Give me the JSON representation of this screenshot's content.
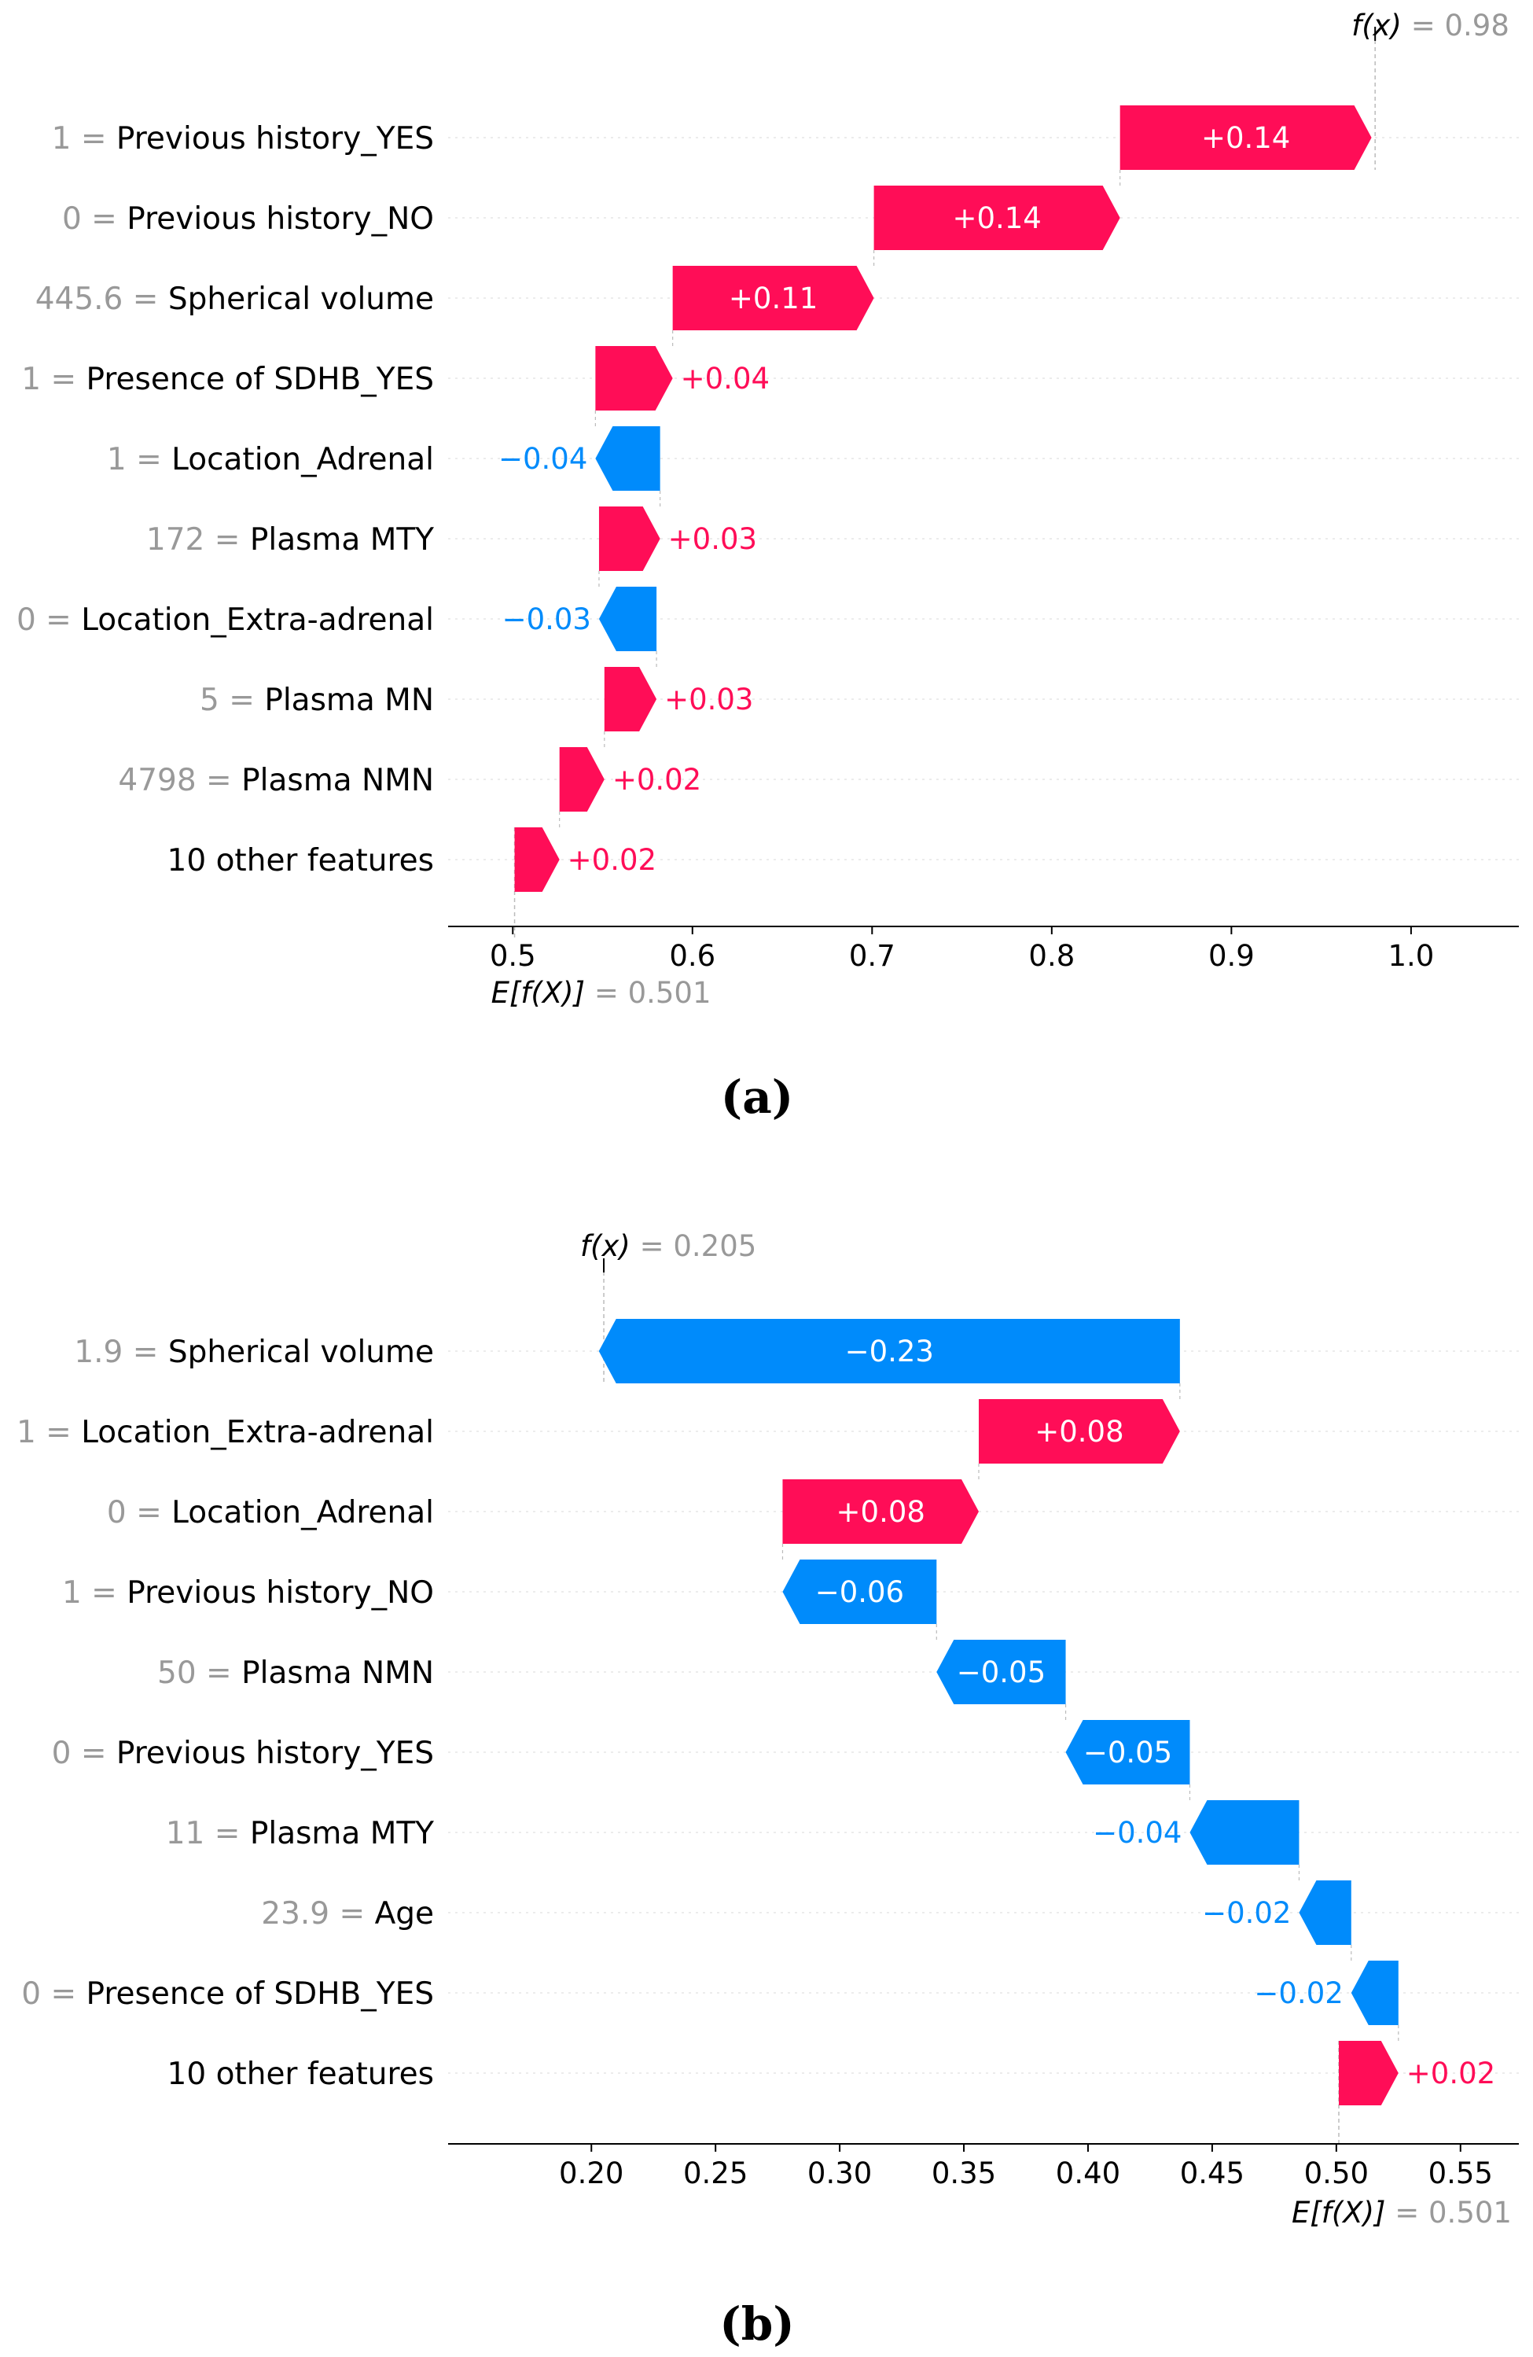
{
  "colors": {
    "positive": "#ff0d57",
    "negative": "#008bfb",
    "muted": "#999999",
    "grid": "#cccccc"
  },
  "chart_data": [
    {
      "type": "waterfall",
      "caption": "(a)",
      "xticks": [
        "0.5",
        "0.6",
        "0.7",
        "0.8",
        "0.9",
        "1.0"
      ],
      "xtick_values": [
        0.5,
        0.6,
        0.7,
        0.8,
        0.9,
        1.0
      ],
      "xlim": [
        0.464,
        1.06
      ],
      "base": {
        "value": 0.501,
        "label": "E[f(X)]",
        "text": "= 0.501"
      },
      "output": {
        "value": 0.98,
        "label": "f(x)",
        "text": "= 0.98"
      },
      "features": [
        {
          "value": "1",
          "name": "Previous history_YES",
          "shap": 0.14,
          "label": "+0.14"
        },
        {
          "value": "0",
          "name": "Previous history_NO",
          "shap": 0.137,
          "label": "+0.14"
        },
        {
          "value": "445.6",
          "name": "Spherical volume",
          "shap": 0.112,
          "label": "+0.11"
        },
        {
          "value": "1",
          "name": "Presence of SDHB_YES",
          "shap": 0.043,
          "label": "+0.04"
        },
        {
          "value": "1",
          "name": "Location_Adrenal",
          "shap": -0.036,
          "label": "−0.04"
        },
        {
          "value": "172",
          "name": "Plasma MTY",
          "shap": 0.034,
          "label": "+0.03"
        },
        {
          "value": "0",
          "name": "Location_Extra-adrenal",
          "shap": -0.032,
          "label": "−0.03"
        },
        {
          "value": "5",
          "name": "Plasma MN",
          "shap": 0.029,
          "label": "+0.03"
        },
        {
          "value": "4798",
          "name": "Plasma NMN",
          "shap": 0.025,
          "label": "+0.02"
        },
        {
          "value": "",
          "name": "10 other features",
          "shap": 0.025,
          "label": "+0.02"
        }
      ]
    },
    {
      "type": "waterfall",
      "caption": "(b)",
      "xticks": [
        "0.20",
        "0.25",
        "0.30",
        "0.35",
        "0.40",
        "0.45",
        "0.50",
        "0.55"
      ],
      "xtick_values": [
        0.2,
        0.25,
        0.3,
        0.35,
        0.4,
        0.45,
        0.5,
        0.55
      ],
      "xlim": [
        0.1423,
        0.5735
      ],
      "base": {
        "value": 0.501,
        "label": "E[f(X)]",
        "text": "= 0.501"
      },
      "output": {
        "value": 0.205,
        "label": "f(x)",
        "text": "= 0.205"
      },
      "features": [
        {
          "value": "1.9",
          "name": "Spherical volume",
          "shap": -0.234,
          "label": "−0.23"
        },
        {
          "value": "1",
          "name": "Location_Extra-adrenal",
          "shap": 0.081,
          "label": "+0.08"
        },
        {
          "value": "0",
          "name": "Location_Adrenal",
          "shap": 0.079,
          "label": "+0.08"
        },
        {
          "value": "1",
          "name": "Previous history_NO",
          "shap": -0.062,
          "label": "−0.06"
        },
        {
          "value": "50",
          "name": "Plasma NMN",
          "shap": -0.052,
          "label": "−0.05"
        },
        {
          "value": "0",
          "name": "Previous history_YES",
          "shap": -0.05,
          "label": "−0.05"
        },
        {
          "value": "11",
          "name": "Plasma MTY",
          "shap": -0.044,
          "label": "−0.04"
        },
        {
          "value": "23.9",
          "name": "Age",
          "shap": -0.021,
          "label": "−0.02"
        },
        {
          "value": "0",
          "name": "Presence of SDHB_YES",
          "shap": -0.019,
          "label": "−0.02"
        },
        {
          "value": "",
          "name": "10 other features",
          "shap": 0.024,
          "label": "+0.02"
        }
      ]
    }
  ]
}
